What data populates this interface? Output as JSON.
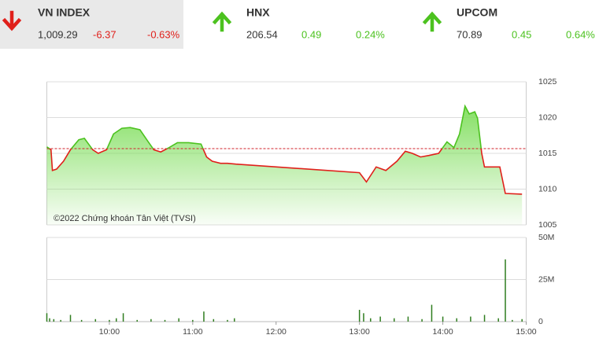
{
  "header": {
    "selected": 0,
    "indices": [
      {
        "name": "VN INDEX",
        "value": "1,009.29",
        "change": "-6.37",
        "change_pct": "-0.63%",
        "direction": "down"
      },
      {
        "name": "HNX",
        "value": "206.54",
        "change": "0.49",
        "change_pct": "0.24%",
        "direction": "up"
      },
      {
        "name": "UPCOM",
        "value": "70.89",
        "change": "0.45",
        "change_pct": "0.64%",
        "direction": "up"
      }
    ]
  },
  "chart_data": [
    {
      "type": "line",
      "annotation": "©2022 Chứng khoán Tân Việt (TVSI)",
      "x": [
        "09:15",
        "09:18",
        "09:19",
        "09:22",
        "09:27",
        "09:32",
        "09:38",
        "09:42",
        "09:48",
        "09:52",
        "09:58",
        "10:03",
        "10:09",
        "10:15",
        "10:22",
        "10:28",
        "10:32",
        "10:37",
        "10:43",
        "10:49",
        "10:57",
        "11:06",
        "11:10",
        "11:14",
        "11:20",
        "11:25",
        "11:31",
        "13:00",
        "13:05",
        "13:12",
        "13:19",
        "13:27",
        "13:33",
        "13:38",
        "13:44",
        "13:50",
        "13:57",
        "14:03",
        "14:08",
        "14:12",
        "14:16",
        "14:19",
        "14:23",
        "14:25",
        "14:28",
        "14:30",
        "14:41",
        "14:45",
        "14:57"
      ],
      "values": [
        1015.9,
        1015.5,
        1012.6,
        1012.8,
        1013.9,
        1015.5,
        1016.9,
        1017.1,
        1015.5,
        1015.0,
        1015.5,
        1017.7,
        1018.5,
        1018.6,
        1018.3,
        1016.6,
        1015.5,
        1015.2,
        1015.8,
        1016.5,
        1016.5,
        1016.3,
        1014.5,
        1013.9,
        1013.6,
        1013.6,
        1013.5,
        1012.3,
        1011.0,
        1013.1,
        1012.6,
        1013.9,
        1015.3,
        1015.0,
        1014.5,
        1014.7,
        1015.0,
        1016.6,
        1015.8,
        1017.7,
        1021.6,
        1020.5,
        1020.8,
        1019.9,
        1015.0,
        1013.1,
        1013.1,
        1009.4,
        1009.3
      ],
      "reference": 1015.66,
      "xlim": [
        "09:15",
        "15:00"
      ],
      "ylim": [
        1005,
        1025
      ],
      "yticks": [
        1005,
        1010,
        1015,
        1020,
        1025
      ],
      "grid": true,
      "colors": {
        "above": "#4cc21f",
        "below": "#e0201b",
        "fill": "#7fde5c",
        "reference": "#d0202a"
      }
    },
    {
      "type": "bar",
      "x": [
        "09:15",
        "09:17",
        "09:20",
        "09:25",
        "09:32",
        "09:40",
        "09:50",
        "10:00",
        "10:05",
        "10:10",
        "10:20",
        "10:30",
        "10:40",
        "10:50",
        "11:00",
        "11:08",
        "11:15",
        "11:25",
        "11:30",
        "13:00",
        "13:03",
        "13:08",
        "13:15",
        "13:25",
        "13:35",
        "13:45",
        "13:52",
        "14:00",
        "14:10",
        "14:20",
        "14:30",
        "14:40",
        "14:45",
        "14:50",
        "14:57"
      ],
      "values": [
        5,
        2,
        1.5,
        1,
        4,
        1,
        1.5,
        1,
        2,
        5,
        1,
        1.5,
        1,
        2,
        1,
        6,
        1.5,
        1,
        2,
        7,
        5,
        2,
        3,
        2,
        3,
        1.5,
        10,
        3,
        2,
        3,
        4,
        2,
        37,
        1,
        1.5
      ],
      "xlim": [
        "09:15",
        "15:00"
      ],
      "xticks": [
        "10:00",
        "11:00",
        "12:00",
        "13:00",
        "14:00",
        "15:00"
      ],
      "ylim": [
        0,
        50
      ],
      "yticks": [
        {
          "value": 0,
          "label": "0"
        },
        {
          "value": 25,
          "label": "25M"
        },
        {
          "value": 50,
          "label": "50M"
        }
      ],
      "grid": true,
      "color": "#2f7d1f"
    }
  ]
}
